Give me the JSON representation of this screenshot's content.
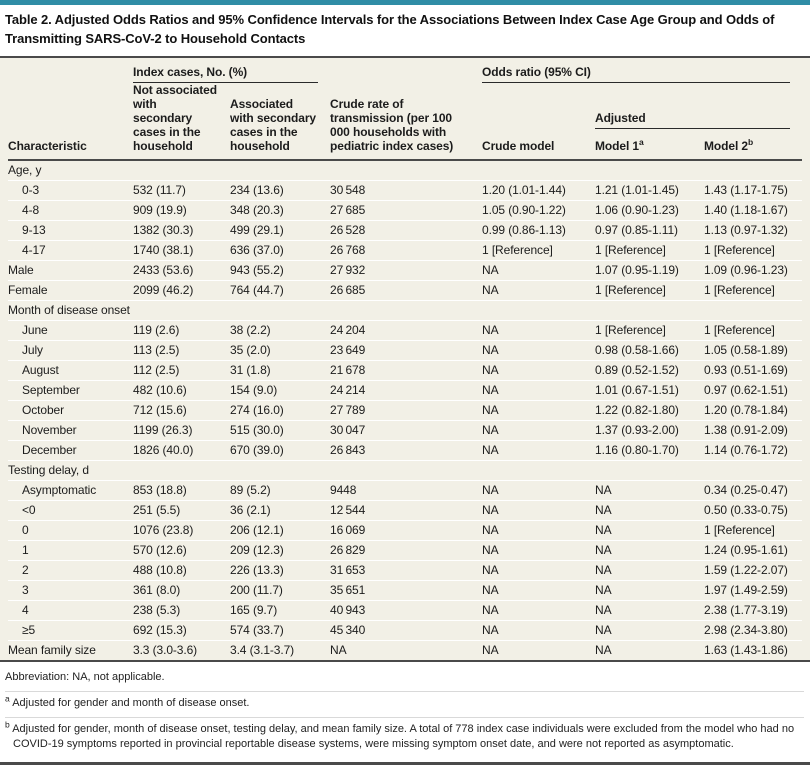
{
  "accent_color": "#2f8da6",
  "title": "Table 2. Adjusted Odds Ratios and 95% Confidence Intervals for the Associations Between Index Case Age Group and Odds of Transmitting SARS-CoV-2 to Household Contacts",
  "header": {
    "characteristic": "Characteristic",
    "index_cases_group": "Index cases, No. (%)",
    "not_associated": "Not associated with secondary cases in the household",
    "associated": "Associated with secondary cases in the household",
    "crude_rate": "Crude rate of transmission (per 100 000 households with pediatric index cases)",
    "odds_ratio_group": "Odds ratio (95% CI)",
    "crude_model": "Crude model",
    "adjusted_group": "Adjusted",
    "model1_label": "Model 1",
    "model1_sup": "a",
    "model2_label": "Model 2",
    "model2_sup": "b"
  },
  "rows": [
    {
      "type": "section",
      "label": "Age, y"
    },
    {
      "type": "data",
      "indent": true,
      "label": "0-3",
      "cells": [
        "532 (11.7)",
        "234 (13.6)",
        "30 548",
        "1.20 (1.01-1.44)",
        "1.21 (1.01-1.45)",
        "1.43 (1.17-1.75)"
      ]
    },
    {
      "type": "data",
      "indent": true,
      "label": "4-8",
      "cells": [
        "909 (19.9)",
        "348 (20.3)",
        "27 685",
        "1.05 (0.90-1.22)",
        "1.06 (0.90-1.23)",
        "1.40 (1.18-1.67)"
      ]
    },
    {
      "type": "data",
      "indent": true,
      "label": "9-13",
      "cells": [
        "1382 (30.3)",
        "499 (29.1)",
        "26 528",
        "0.99 (0.86-1.13)",
        "0.97 (0.85-1.11)",
        "1.13 (0.97-1.32)"
      ]
    },
    {
      "type": "data",
      "indent": true,
      "label": "4-17",
      "cells": [
        "1740 (38.1)",
        "636 (37.0)",
        "26 768",
        "1 [Reference]",
        "1 [Reference]",
        "1 [Reference]"
      ]
    },
    {
      "type": "data",
      "indent": false,
      "label": "Male",
      "cells": [
        "2433 (53.6)",
        "943 (55.2)",
        "27 932",
        "NA",
        "1.07 (0.95-1.19)",
        "1.09 (0.96-1.23)"
      ]
    },
    {
      "type": "data",
      "indent": false,
      "label": "Female",
      "cells": [
        "2099 (46.2)",
        "764 (44.7)",
        "26 685",
        "NA",
        "1 [Reference]",
        "1 [Reference]"
      ]
    },
    {
      "type": "section",
      "label": "Month of disease onset"
    },
    {
      "type": "data",
      "indent": true,
      "label": "June",
      "cells": [
        "119 (2.6)",
        "38 (2.2)",
        "24 204",
        "NA",
        "1 [Reference]",
        "1 [Reference]"
      ]
    },
    {
      "type": "data",
      "indent": true,
      "label": "July",
      "cells": [
        "113 (2.5)",
        "35 (2.0)",
        "23 649",
        "NA",
        "0.98 (0.58-1.66)",
        "1.05 (0.58-1.89)"
      ]
    },
    {
      "type": "data",
      "indent": true,
      "label": "August",
      "cells": [
        "112 (2.5)",
        "31 (1.8)",
        "21 678",
        "NA",
        "0.89 (0.52-1.52)",
        "0.93 (0.51-1.69)"
      ]
    },
    {
      "type": "data",
      "indent": true,
      "label": "September",
      "cells": [
        "482 (10.6)",
        "154 (9.0)",
        "24 214",
        "NA",
        "1.01 (0.67-1.51)",
        "0.97 (0.62-1.51)"
      ]
    },
    {
      "type": "data",
      "indent": true,
      "label": "October",
      "cells": [
        "712 (15.6)",
        "274 (16.0)",
        "27 789",
        "NA",
        "1.22 (0.82-1.80)",
        "1.20 (0.78-1.84)"
      ]
    },
    {
      "type": "data",
      "indent": true,
      "label": "November",
      "cells": [
        "1199 (26.3)",
        "515 (30.0)",
        "30 047",
        "NA",
        "1.37 (0.93-2.00)",
        "1.38 (0.91-2.09)"
      ]
    },
    {
      "type": "data",
      "indent": true,
      "label": "December",
      "cells": [
        "1826 (40.0)",
        "670 (39.0)",
        "26 843",
        "NA",
        "1.16 (0.80-1.70)",
        "1.14 (0.76-1.72)"
      ]
    },
    {
      "type": "section",
      "label": "Testing delay, d"
    },
    {
      "type": "data",
      "indent": true,
      "label": "Asymptomatic",
      "cells": [
        "853 (18.8)",
        "89 (5.2)",
        "9448",
        "NA",
        "NA",
        "0.34 (0.25-0.47)"
      ]
    },
    {
      "type": "data",
      "indent": true,
      "label": "<0",
      "cells": [
        "251 (5.5)",
        "36 (2.1)",
        "12 544",
        "NA",
        "NA",
        "0.50 (0.33-0.75)"
      ]
    },
    {
      "type": "data",
      "indent": true,
      "label": "0",
      "cells": [
        "1076 (23.8)",
        "206 (12.1)",
        "16 069",
        "NA",
        "NA",
        "1 [Reference]"
      ]
    },
    {
      "type": "data",
      "indent": true,
      "label": "1",
      "cells": [
        "570 (12.6)",
        "209 (12.3)",
        "26 829",
        "NA",
        "NA",
        "1.24 (0.95-1.61)"
      ]
    },
    {
      "type": "data",
      "indent": true,
      "label": "2",
      "cells": [
        "488 (10.8)",
        "226 (13.3)",
        "31 653",
        "NA",
        "NA",
        "1.59 (1.22-2.07)"
      ]
    },
    {
      "type": "data",
      "indent": true,
      "label": "3",
      "cells": [
        "361 (8.0)",
        "200 (11.7)",
        "35 651",
        "NA",
        "NA",
        "1.97 (1.49-2.59)"
      ]
    },
    {
      "type": "data",
      "indent": true,
      "label": "4",
      "cells": [
        "238 (5.3)",
        "165 (9.7)",
        "40 943",
        "NA",
        "NA",
        "2.38 (1.77-3.19)"
      ]
    },
    {
      "type": "data",
      "indent": true,
      "label": "≥5",
      "cells": [
        "692 (15.3)",
        "574 (33.7)",
        "45 340",
        "NA",
        "NA",
        "2.98 (2.34-3.80)"
      ]
    },
    {
      "type": "data",
      "indent": false,
      "label": "Mean family size",
      "cells": [
        "3.3 (3.0-3.6)",
        "3.4 (3.1-3.7)",
        "NA",
        "NA",
        "NA",
        "1.63 (1.43-1.86)"
      ]
    }
  ],
  "footnotes": {
    "abbreviation": "Abbreviation: NA, not applicable.",
    "a_marker": "a",
    "a_text": "Adjusted for gender and month of disease onset.",
    "b_marker": "b",
    "b_text": "Adjusted for gender, month of disease onset, testing delay, and mean family size. A total of 778 index case individuals were excluded from the model who had no COVID-19 symptoms reported in provincial reportable disease systems, were missing symptom onset date, and were not reported as asymptomatic."
  }
}
